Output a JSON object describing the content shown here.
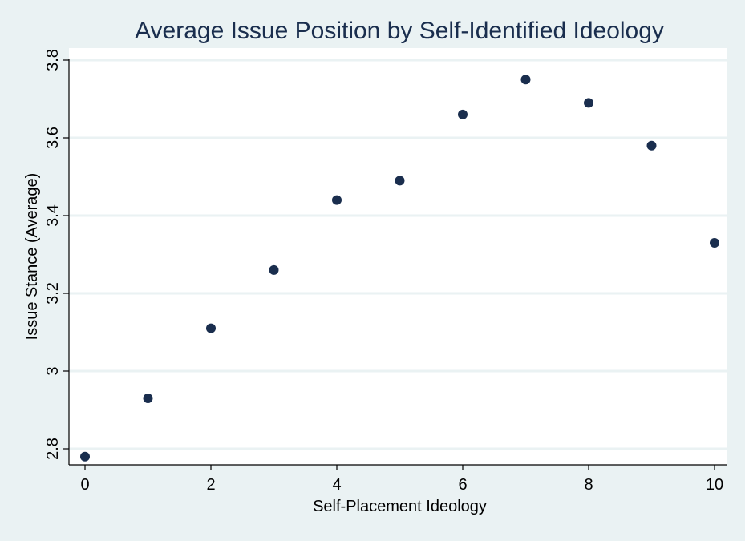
{
  "colors": {
    "background": "#eaf2f3",
    "plot_background": "#ffffff",
    "gridline": "#eaf2f3",
    "marker": "#1a2e4e",
    "title": "#1a2e4e",
    "axis": "#000000"
  },
  "chart_data": {
    "type": "scatter",
    "title": "Average Issue Position by Self-Identified Ideology",
    "xlabel": "Self-Placement Ideology",
    "ylabel": "Issue Stance (Average)",
    "xlim": [
      0,
      10
    ],
    "ylim": [
      2.8,
      3.8
    ],
    "x_ticks": [
      0,
      2,
      4,
      6,
      8,
      10
    ],
    "x_tick_labels": [
      "0",
      "2",
      "4",
      "6",
      "8",
      "10"
    ],
    "y_ticks": [
      2.8,
      3.0,
      3.2,
      3.4,
      3.6,
      3.8
    ],
    "y_tick_labels": [
      "2.8",
      "3",
      "3.2",
      "3.4",
      "3.6",
      "3.8"
    ],
    "grid": "horizontal",
    "legend": "none",
    "x": [
      0,
      1,
      2,
      3,
      4,
      5,
      6,
      7,
      8,
      9,
      10
    ],
    "y": [
      2.78,
      2.93,
      3.11,
      3.26,
      3.44,
      3.49,
      3.66,
      3.75,
      3.69,
      3.58,
      3.33
    ]
  }
}
